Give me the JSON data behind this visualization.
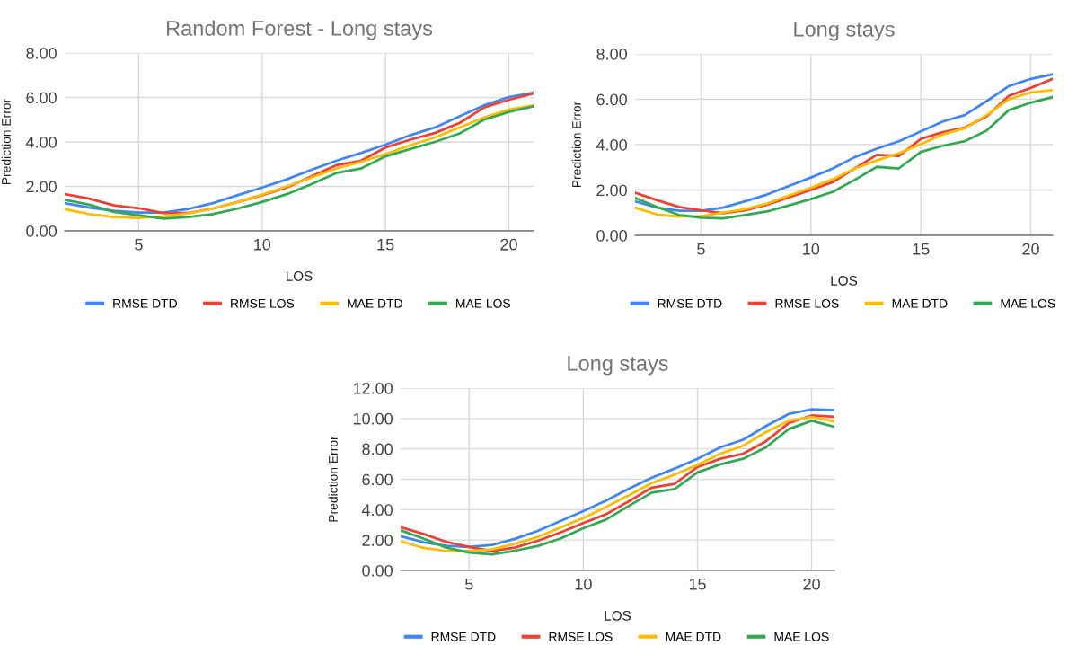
{
  "chart_data": [
    {
      "type": "line",
      "title": "Random Forest - Long stays",
      "xlabel": "LOS",
      "ylabel": "Prediction Error",
      "x": [
        2,
        3,
        4,
        5,
        6,
        7,
        8,
        9,
        10,
        11,
        12,
        13,
        14,
        15,
        16,
        17,
        18,
        19,
        20,
        21
      ],
      "xlim": [
        2,
        21
      ],
      "xticks": [
        5,
        10,
        15,
        20
      ],
      "ylim": [
        0,
        8
      ],
      "yticks": [
        {
          "value": 0,
          "label": "0.00"
        },
        {
          "value": 2,
          "label": "2.00"
        },
        {
          "value": 4,
          "label": "4.00"
        },
        {
          "value": 6,
          "label": "6.00"
        },
        {
          "value": 8,
          "label": "8.00"
        }
      ],
      "grid": true,
      "legend": "bottom",
      "series": [
        {
          "name": "RMSE DTD",
          "color": "#4285f4",
          "values": [
            1.25,
            1.05,
            0.9,
            0.82,
            0.82,
            0.98,
            1.25,
            1.6,
            1.95,
            2.32,
            2.75,
            3.15,
            3.5,
            3.88,
            4.3,
            4.65,
            5.15,
            5.65,
            6.02,
            6.22
          ]
        },
        {
          "name": "RMSE LOS",
          "color": "#ea4335",
          "values": [
            1.65,
            1.45,
            1.15,
            1.02,
            0.8,
            0.8,
            1.0,
            1.3,
            1.6,
            1.95,
            2.45,
            2.95,
            3.15,
            3.75,
            4.1,
            4.4,
            4.85,
            5.55,
            5.9,
            6.18
          ]
        },
        {
          "name": "MAE DTD",
          "color": "#fbbc04",
          "values": [
            0.98,
            0.75,
            0.62,
            0.58,
            0.65,
            0.78,
            1.0,
            1.3,
            1.62,
            2.0,
            2.4,
            2.8,
            3.1,
            3.45,
            3.85,
            4.2,
            4.65,
            5.1,
            5.45,
            5.65
          ]
        },
        {
          "name": "MAE LOS",
          "color": "#34a853",
          "values": [
            1.4,
            1.18,
            0.85,
            0.7,
            0.55,
            0.62,
            0.75,
            1.0,
            1.3,
            1.65,
            2.1,
            2.6,
            2.8,
            3.35,
            3.68,
            4.0,
            4.38,
            5.0,
            5.35,
            5.6
          ]
        }
      ]
    },
    {
      "type": "line",
      "title": "Long stays",
      "xlabel": "LOS",
      "ylabel": "Prediction Error",
      "x": [
        2,
        3,
        4,
        5,
        6,
        7,
        8,
        9,
        10,
        11,
        12,
        13,
        14,
        15,
        16,
        17,
        18,
        19,
        20,
        21
      ],
      "xlim": [
        2,
        21
      ],
      "xticks": [
        5,
        10,
        15,
        20
      ],
      "ylim": [
        0,
        8
      ],
      "yticks": [
        {
          "value": 0,
          "label": "0.00"
        },
        {
          "value": 2,
          "label": "2.00"
        },
        {
          "value": 4,
          "label": "4.00"
        },
        {
          "value": 6,
          "label": "6.00"
        },
        {
          "value": 8,
          "label": "8.00"
        }
      ],
      "grid": true,
      "legend": "bottom",
      "series": [
        {
          "name": "RMSE DTD",
          "color": "#4285f4",
          "values": [
            1.5,
            1.22,
            1.08,
            1.08,
            1.22,
            1.5,
            1.8,
            2.18,
            2.55,
            2.95,
            3.45,
            3.82,
            4.15,
            4.58,
            5.02,
            5.3,
            5.92,
            6.58,
            6.9,
            7.1
          ]
        },
        {
          "name": "RMSE LOS",
          "color": "#ea4335",
          "values": [
            1.88,
            1.55,
            1.25,
            1.1,
            0.98,
            1.1,
            1.35,
            1.68,
            2.0,
            2.35,
            2.95,
            3.55,
            3.5,
            4.25,
            4.55,
            4.75,
            5.25,
            6.15,
            6.5,
            6.9
          ]
        },
        {
          "name": "MAE DTD",
          "color": "#fbbc04",
          "values": [
            1.22,
            0.92,
            0.83,
            0.85,
            1.0,
            1.15,
            1.4,
            1.75,
            2.1,
            2.48,
            2.95,
            3.3,
            3.62,
            4.02,
            4.45,
            4.72,
            5.3,
            6.0,
            6.3,
            6.4
          ]
        },
        {
          "name": "MAE LOS",
          "color": "#34a853",
          "values": [
            1.65,
            1.25,
            0.9,
            0.78,
            0.75,
            0.9,
            1.05,
            1.32,
            1.6,
            1.92,
            2.45,
            3.02,
            2.95,
            3.68,
            3.95,
            4.15,
            4.62,
            5.52,
            5.85,
            6.1
          ]
        }
      ]
    },
    {
      "type": "line",
      "title": "Long stays",
      "xlabel": "LOS",
      "ylabel": "Prediction Error",
      "x": [
        2,
        3,
        4,
        5,
        6,
        7,
        8,
        9,
        10,
        11,
        12,
        13,
        14,
        15,
        16,
        17,
        18,
        19,
        20,
        21
      ],
      "xlim": [
        2,
        21
      ],
      "xticks": [
        5,
        10,
        15,
        20
      ],
      "ylim": [
        0,
        12
      ],
      "yticks": [
        {
          "value": 0,
          "label": "0.00"
        },
        {
          "value": 2,
          "label": "2.00"
        },
        {
          "value": 4,
          "label": "4.00"
        },
        {
          "value": 6,
          "label": "6.00"
        },
        {
          "value": 8,
          "label": "8.00"
        },
        {
          "value": 10,
          "label": "10.00"
        },
        {
          "value": 12,
          "label": "12.00"
        }
      ],
      "grid": true,
      "legend": "bottom",
      "series": [
        {
          "name": "RMSE DTD",
          "color": "#4285f4",
          "values": [
            2.25,
            1.85,
            1.62,
            1.55,
            1.68,
            2.08,
            2.6,
            3.25,
            3.9,
            4.6,
            5.38,
            6.1,
            6.7,
            7.35,
            8.1,
            8.6,
            9.5,
            10.3,
            10.6,
            10.55
          ]
        },
        {
          "name": "RMSE LOS",
          "color": "#ea4335",
          "values": [
            2.85,
            2.4,
            1.88,
            1.55,
            1.28,
            1.5,
            1.95,
            2.5,
            3.12,
            3.7,
            4.55,
            5.45,
            5.7,
            6.8,
            7.35,
            7.68,
            8.5,
            9.7,
            10.2,
            10.12
          ]
        },
        {
          "name": "MAE DTD",
          "color": "#fbbc04",
          "values": [
            1.92,
            1.48,
            1.28,
            1.28,
            1.38,
            1.75,
            2.2,
            2.82,
            3.45,
            4.18,
            4.95,
            5.75,
            6.3,
            6.95,
            7.68,
            8.2,
            9.1,
            9.85,
            10.1,
            9.8
          ]
        },
        {
          "name": "MAE LOS",
          "color": "#34a853",
          "values": [
            2.65,
            2.1,
            1.5,
            1.18,
            1.05,
            1.3,
            1.6,
            2.1,
            2.78,
            3.35,
            4.25,
            5.12,
            5.35,
            6.45,
            6.98,
            7.35,
            8.1,
            9.3,
            9.85,
            9.45
          ]
        }
      ]
    }
  ]
}
